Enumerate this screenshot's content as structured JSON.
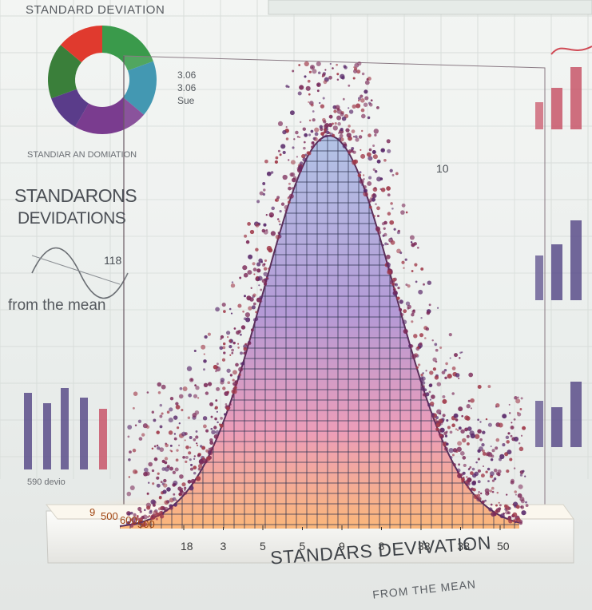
{
  "texts": {
    "top_title": "STANDARD DEVIATION",
    "left_title_1": "STANDARONS",
    "left_title_2": "DEVIDATIONS",
    "left_from": "from the mean",
    "small_label": "STANDIAR AN DOMIATION",
    "pie_labels": "3.06\n3.06\nSue",
    "side_tick_left": "118",
    "side_tick_right": "10",
    "bottom_left_label": "590 devio",
    "base_label": "STANDARS DEVIVATION",
    "sub_label": "FROM THE MEAN"
  },
  "base_ticks": [
    "18",
    "3",
    "5",
    "5",
    "9",
    "8",
    "38",
    "38",
    "50"
  ],
  "front_ticks": [
    "9",
    "500",
    "600",
    "500"
  ],
  "donut_colors": [
    "#3a9a4b",
    "#2a8aa8",
    "#7a3c8f",
    "#5a3c8a",
    "#3a7f3a",
    "#e03a2e"
  ],
  "palette": {
    "surface_top": "#a9b8d8",
    "surface_bottom": "#f6a06a",
    "particle": "#6a2a5a",
    "bar_purple": "#5b4e8a",
    "bar_red": "#c8566a"
  }
}
